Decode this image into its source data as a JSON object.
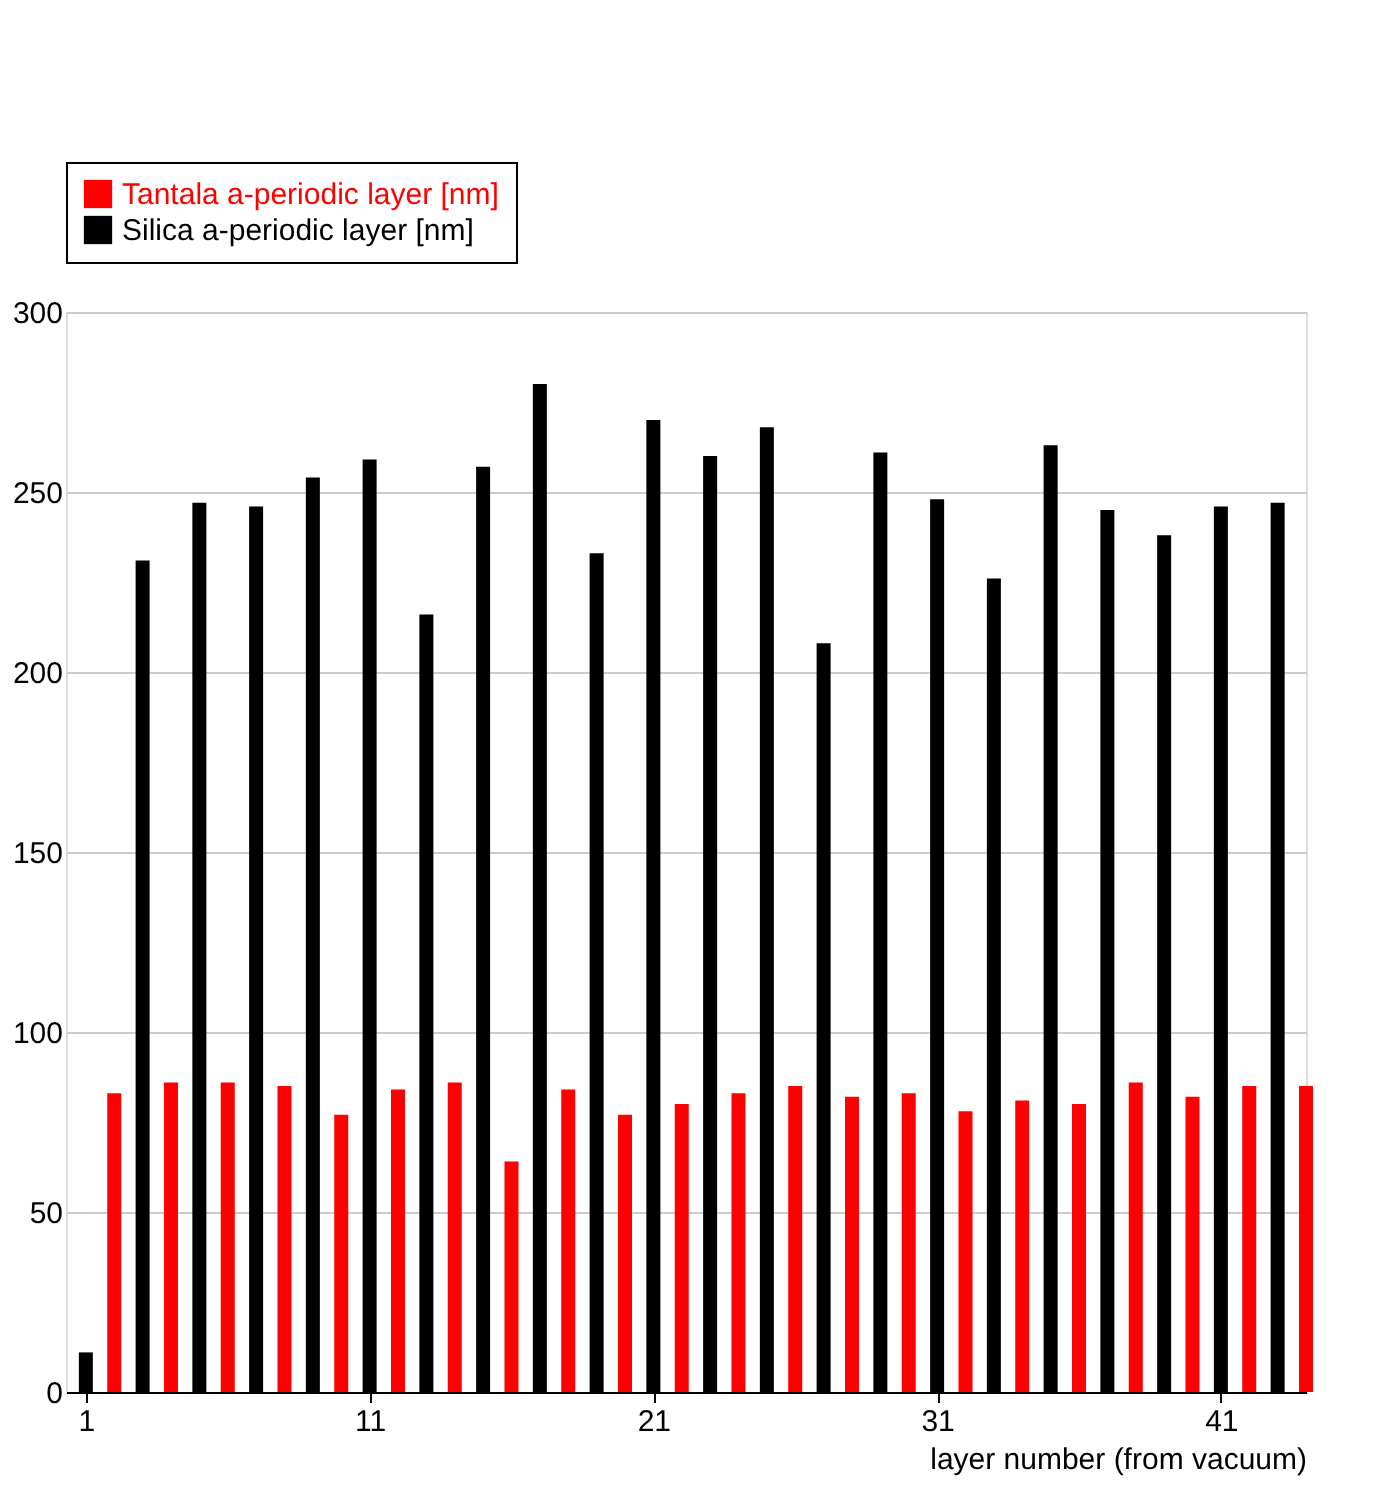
{
  "chart_data": {
    "type": "bar",
    "xlabel": "layer number (from vacuum)",
    "xlim": [
      0.3,
      44
    ],
    "xticks": [
      1,
      11,
      21,
      31,
      41
    ],
    "ylim": [
      0,
      300
    ],
    "yticks": [
      0,
      50,
      100,
      150,
      200,
      250,
      300
    ],
    "grid": "y",
    "legend": "top left",
    "series": [
      {
        "name": "Tantala a-periodic layer [nm]",
        "color": "#ff0000",
        "x": [
          2,
          4,
          6,
          8,
          10,
          12,
          14,
          16,
          18,
          20,
          22,
          24,
          26,
          28,
          30,
          32,
          34,
          36,
          38,
          40,
          42,
          44
        ],
        "values": [
          83,
          86,
          86,
          85,
          77,
          84,
          86,
          64,
          84,
          77,
          80,
          83,
          85,
          82,
          83,
          78,
          81,
          80,
          86,
          82,
          85,
          85
        ]
      },
      {
        "name": "Silica a-periodic layer [nm]",
        "color": "#000000",
        "x": [
          1,
          3,
          5,
          7,
          9,
          11,
          13,
          15,
          17,
          19,
          21,
          23,
          25,
          27,
          29,
          31,
          33,
          35,
          37,
          39,
          41,
          43
        ],
        "values": [
          11,
          231,
          247,
          246,
          254,
          259,
          216,
          257,
          280,
          233,
          270,
          260,
          268,
          208,
          261,
          248,
          226,
          263,
          245,
          238,
          246,
          247
        ]
      }
    ]
  }
}
